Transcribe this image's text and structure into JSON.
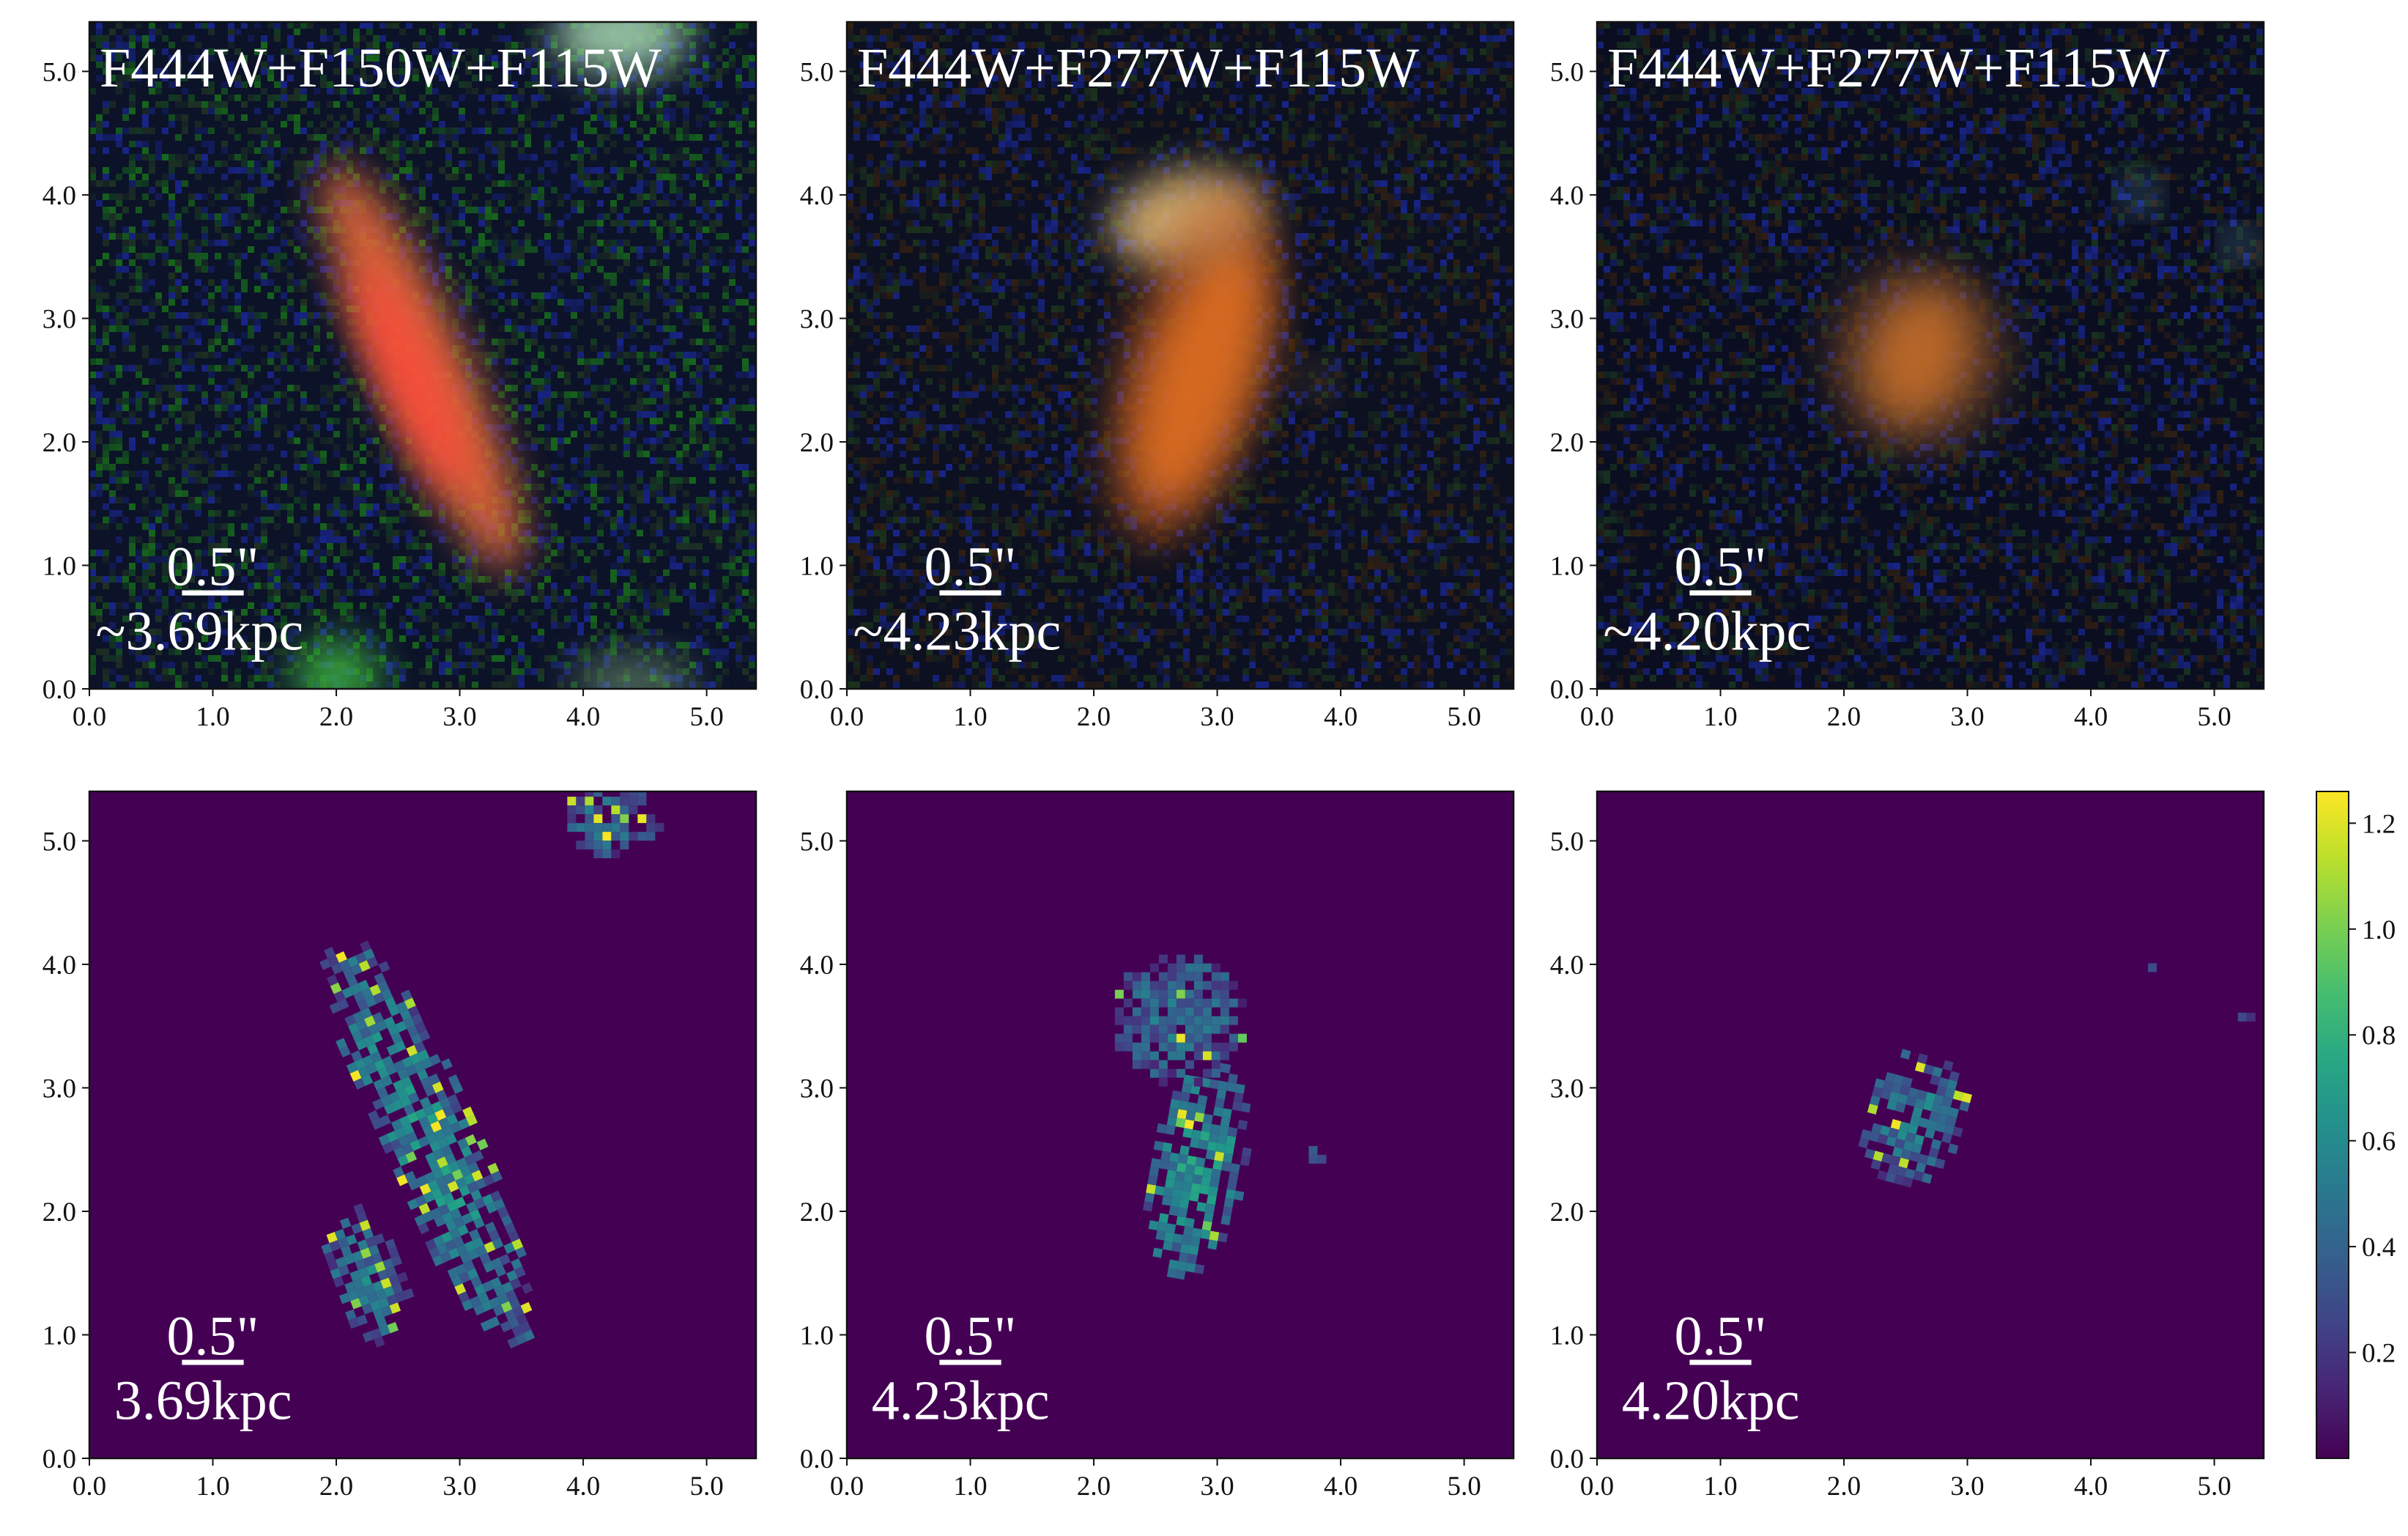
{
  "chart_data": [
    {
      "type": "heatmap",
      "panel": "rgb-1",
      "image_kind": "rgb",
      "band_label": "F444W+F150W+F115W",
      "xlim": [
        0.0,
        5.4
      ],
      "ylim": [
        0.0,
        5.4
      ],
      "xticks": [
        "0.0",
        "1.0",
        "2.0",
        "3.0",
        "4.0",
        "5.0"
      ],
      "yticks": [
        "0.0",
        "1.0",
        "2.0",
        "3.0",
        "4.0",
        "5.0"
      ],
      "scalebar": {
        "angle_label": "0.5\"",
        "length_arcsec": 0.5,
        "physical_label": "~3.69kpc"
      },
      "background": {
        "color": "#0c1228",
        "noise": [
          "#1a7a1a",
          "#1c2aa0",
          "#223a22"
        ]
      },
      "sources": [
        {
          "x": 2.7,
          "y": 2.6,
          "rx": 0.36,
          "ry": 1.8,
          "angle_deg": -24,
          "color": "#e86a3a",
          "opacity": 0.9
        },
        {
          "x": 2.6,
          "y": 2.5,
          "rx": 0.2,
          "ry": 1.0,
          "angle_deg": -24,
          "color": "#ff4a3a",
          "opacity": 0.95
        },
        {
          "x": 4.3,
          "y": 5.3,
          "rx": 0.55,
          "ry": 0.3,
          "angle_deg": 0,
          "color": "#a6d8b0",
          "opacity": 0.9
        },
        {
          "x": 2.0,
          "y": 0.1,
          "rx": 0.35,
          "ry": 0.3,
          "angle_deg": 0,
          "color": "#3fbf3f",
          "opacity": 0.8
        },
        {
          "x": 4.4,
          "y": 0.05,
          "rx": 0.5,
          "ry": 0.2,
          "angle_deg": 0,
          "color": "#7aa77a",
          "opacity": 0.6
        }
      ]
    },
    {
      "type": "heatmap",
      "panel": "rgb-2",
      "image_kind": "rgb",
      "band_label": "F444W+F277W+F115W",
      "xlim": [
        0.0,
        5.4
      ],
      "ylim": [
        0.0,
        5.4
      ],
      "xticks": [
        "0.0",
        "1.0",
        "2.0",
        "3.0",
        "4.0",
        "5.0"
      ],
      "yticks": [
        "0.0",
        "1.0",
        "2.0",
        "3.0",
        "4.0",
        "5.0"
      ],
      "scalebar": {
        "angle_label": "0.5\"",
        "length_arcsec": 0.5,
        "physical_label": "~4.23kpc"
      },
      "background": {
        "color": "#0c1020",
        "noise": [
          "#1c2aa0",
          "#3a2410",
          "#203a1c"
        ]
      },
      "sources": [
        {
          "x": 2.85,
          "y": 2.55,
          "rx": 0.42,
          "ry": 1.15,
          "angle_deg": 18,
          "color": "#ff8a28",
          "opacity": 0.95
        },
        {
          "x": 2.75,
          "y": 3.8,
          "rx": 0.62,
          "ry": 0.38,
          "angle_deg": -10,
          "color": "#e8c07a",
          "opacity": 0.85
        },
        {
          "x": 2.8,
          "y": 2.6,
          "rx": 0.6,
          "ry": 1.5,
          "angle_deg": 15,
          "color": "#b8501e",
          "opacity": 0.5
        },
        {
          "x": 3.8,
          "y": 2.5,
          "rx": 0.12,
          "ry": 0.12,
          "angle_deg": 0,
          "color": "#8a6a40",
          "opacity": 0.6
        }
      ]
    },
    {
      "type": "heatmap",
      "panel": "rgb-3",
      "image_kind": "rgb",
      "band_label": "F444W+F277W+F115W",
      "xlim": [
        0.0,
        5.4
      ],
      "ylim": [
        0.0,
        5.4
      ],
      "xticks": [
        "0.0",
        "1.0",
        "2.0",
        "3.0",
        "4.0",
        "5.0"
      ],
      "yticks": [
        "0.0",
        "1.0",
        "2.0",
        "3.0",
        "4.0",
        "5.0"
      ],
      "scalebar": {
        "angle_label": "0.5\"",
        "length_arcsec": 0.5,
        "physical_label": "~4.20kpc"
      },
      "background": {
        "color": "#0a0e20",
        "noise": [
          "#1c2aa0",
          "#3a2410",
          "#1c3a20"
        ]
      },
      "sources": [
        {
          "x": 2.6,
          "y": 2.7,
          "rx": 0.42,
          "ry": 0.55,
          "angle_deg": 20,
          "color": "#ff8a28",
          "opacity": 0.95
        },
        {
          "x": 2.6,
          "y": 2.7,
          "rx": 0.75,
          "ry": 0.8,
          "angle_deg": 0,
          "color": "#7a4a2a",
          "opacity": 0.5
        },
        {
          "x": 4.4,
          "y": 4.0,
          "rx": 0.12,
          "ry": 0.12,
          "angle_deg": 0,
          "color": "#5a9ab0",
          "opacity": 0.8
        },
        {
          "x": 5.2,
          "y": 3.6,
          "rx": 0.1,
          "ry": 0.1,
          "angle_deg": 0,
          "color": "#7ac0d8",
          "opacity": 0.9
        }
      ]
    },
    {
      "type": "heatmap",
      "panel": "map-1",
      "image_kind": "colormap",
      "xlim": [
        0.0,
        5.4
      ],
      "ylim": [
        0.0,
        5.4
      ],
      "xticks": [
        "0.0",
        "1.0",
        "2.0",
        "3.0",
        "4.0",
        "5.0"
      ],
      "yticks": [
        "0.0",
        "1.0",
        "2.0",
        "3.0",
        "4.0",
        "5.0"
      ],
      "scalebar": {
        "angle_label": "0.5\"",
        "length_arcsec": 0.5,
        "physical_label": "3.69kpc"
      },
      "background": {
        "color": "#440154"
      },
      "sources": [
        {
          "x": 2.7,
          "y": 2.6,
          "rx": 0.4,
          "ry": 1.85,
          "angle_deg": -24,
          "value": 0.55
        },
        {
          "x": 2.2,
          "y": 1.5,
          "rx": 0.3,
          "ry": 0.6,
          "angle_deg": -20,
          "value": 0.45
        },
        {
          "x": 4.2,
          "y": 5.2,
          "rx": 0.4,
          "ry": 0.3,
          "angle_deg": 0,
          "value": 0.4
        }
      ]
    },
    {
      "type": "heatmap",
      "panel": "map-2",
      "image_kind": "colormap",
      "xlim": [
        0.0,
        5.4
      ],
      "ylim": [
        0.0,
        5.4
      ],
      "xticks": [
        "0.0",
        "1.0",
        "2.0",
        "3.0",
        "4.0",
        "5.0"
      ],
      "yticks": [
        "0.0",
        "1.0",
        "2.0",
        "3.0",
        "4.0",
        "5.0"
      ],
      "scalebar": {
        "angle_label": "0.5\"",
        "length_arcsec": 0.5,
        "physical_label": "4.23kpc"
      },
      "background": {
        "color": "#440154"
      },
      "sources": [
        {
          "x": 2.8,
          "y": 2.4,
          "rx": 0.4,
          "ry": 0.9,
          "angle_deg": 10,
          "value": 0.6
        },
        {
          "x": 2.65,
          "y": 3.6,
          "rx": 0.55,
          "ry": 0.55,
          "angle_deg": 0,
          "value": 0.4
        },
        {
          "x": 3.75,
          "y": 2.5,
          "rx": 0.08,
          "ry": 0.1,
          "angle_deg": 0,
          "value": 0.4
        }
      ]
    },
    {
      "type": "heatmap",
      "panel": "map-3",
      "image_kind": "colormap",
      "xlim": [
        0.0,
        5.4
      ],
      "ylim": [
        0.0,
        5.4
      ],
      "xticks": [
        "0.0",
        "1.0",
        "2.0",
        "3.0",
        "4.0",
        "5.0"
      ],
      "yticks": [
        "0.0",
        "1.0",
        "2.0",
        "3.0",
        "4.0",
        "5.0"
      ],
      "scalebar": {
        "angle_label": "0.5\"",
        "length_arcsec": 0.5,
        "physical_label": "4.20kpc"
      },
      "background": {
        "color": "#440154"
      },
      "sources": [
        {
          "x": 2.55,
          "y": 2.8,
          "rx": 0.42,
          "ry": 0.55,
          "angle_deg": 15,
          "value": 0.45
        },
        {
          "x": 4.4,
          "y": 4.0,
          "rx": 0.08,
          "ry": 0.08,
          "angle_deg": 0,
          "value": 0.3
        },
        {
          "x": 5.2,
          "y": 3.6,
          "rx": 0.08,
          "ry": 0.08,
          "angle_deg": 0,
          "value": 0.3
        }
      ]
    }
  ],
  "colorbar": {
    "colormap": "viridis",
    "range": [
      0.0,
      1.26
    ],
    "ticks": [
      {
        "value": 0.2,
        "label": "0.2"
      },
      {
        "value": 0.4,
        "label": "0.4"
      },
      {
        "value": 0.6,
        "label": "0.6"
      },
      {
        "value": 0.8,
        "label": "0.8"
      },
      {
        "value": 1.0,
        "label": "1.0"
      },
      {
        "value": 1.2,
        "label": "1.2"
      }
    ]
  }
}
